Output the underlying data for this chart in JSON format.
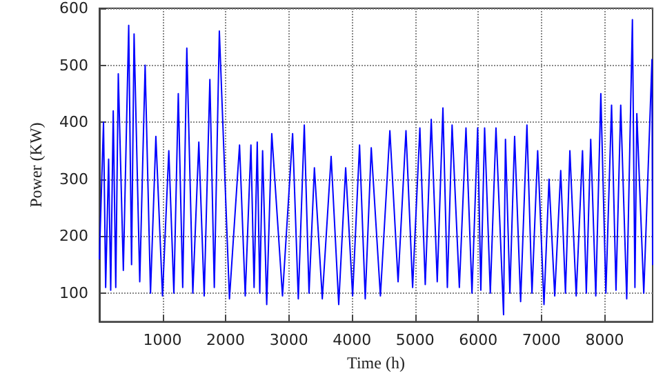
{
  "chart_data": {
    "type": "line",
    "xlabel": "Time (h)",
    "ylabel": "Power (KW)",
    "x": [
      0,
      66,
      100,
      147,
      180,
      220,
      260,
      300,
      380,
      465,
      510,
      550,
      640,
      725,
      810,
      895,
      1000,
      1100,
      1180,
      1250,
      1320,
      1385,
      1480,
      1575,
      1660,
      1750,
      1820,
      1900,
      2060,
      2220,
      2310,
      2400,
      2450,
      2500,
      2540,
      2585,
      2650,
      2730,
      2900,
      3060,
      3150,
      3245,
      3320,
      3405,
      3530,
      3670,
      3790,
      3900,
      4010,
      4120,
      4210,
      4305,
      4450,
      4600,
      4730,
      4855,
      4960,
      5075,
      5160,
      5255,
      5350,
      5440,
      5510,
      5585,
      5700,
      5805,
      5900,
      5990,
      6040,
      6100,
      6190,
      6280,
      6400,
      6430,
      6500,
      6575,
      6670,
      6770,
      6850,
      6940,
      7040,
      7120,
      7210,
      7305,
      7380,
      7450,
      7550,
      7650,
      7710,
      7780,
      7860,
      7940,
      8020,
      8110,
      8180,
      8255,
      8350,
      8440,
      8480,
      8510,
      8620,
      8750,
      8760
    ],
    "series": [
      {
        "color": "#0000ff",
        "values": [
          160,
          400,
          110,
          335,
          105,
          420,
          110,
          485,
          140,
          570,
          150,
          555,
          120,
          500,
          100,
          375,
          95,
          350,
          100,
          450,
          110,
          530,
          100,
          365,
          95,
          475,
          110,
          560,
          90,
          360,
          95,
          360,
          110,
          365,
          100,
          350,
          80,
          380,
          95,
          380,
          90,
          395,
          100,
          320,
          90,
          340,
          80,
          320,
          95,
          360,
          90,
          355,
          95,
          385,
          120,
          385,
          110,
          390,
          115,
          405,
          120,
          425,
          110,
          395,
          110,
          390,
          100,
          390,
          105,
          390,
          100,
          390,
          62,
          370,
          100,
          375,
          85,
          395,
          100,
          350,
          80,
          300,
          95,
          315,
          100,
          350,
          95,
          350,
          100,
          370,
          95,
          450,
          100,
          430,
          105,
          430,
          90,
          580,
          110,
          415,
          100,
          510,
          150
        ]
      }
    ],
    "xlim": [
      0,
      8760
    ],
    "xticks": [
      1000,
      2000,
      3000,
      4000,
      5000,
      6000,
      7000,
      8000
    ],
    "ylim": [
      50,
      600
    ],
    "yticks": [
      100,
      200,
      300,
      400,
      500,
      600
    ],
    "grid": true,
    "line_style": "solid",
    "marker": "none"
  }
}
